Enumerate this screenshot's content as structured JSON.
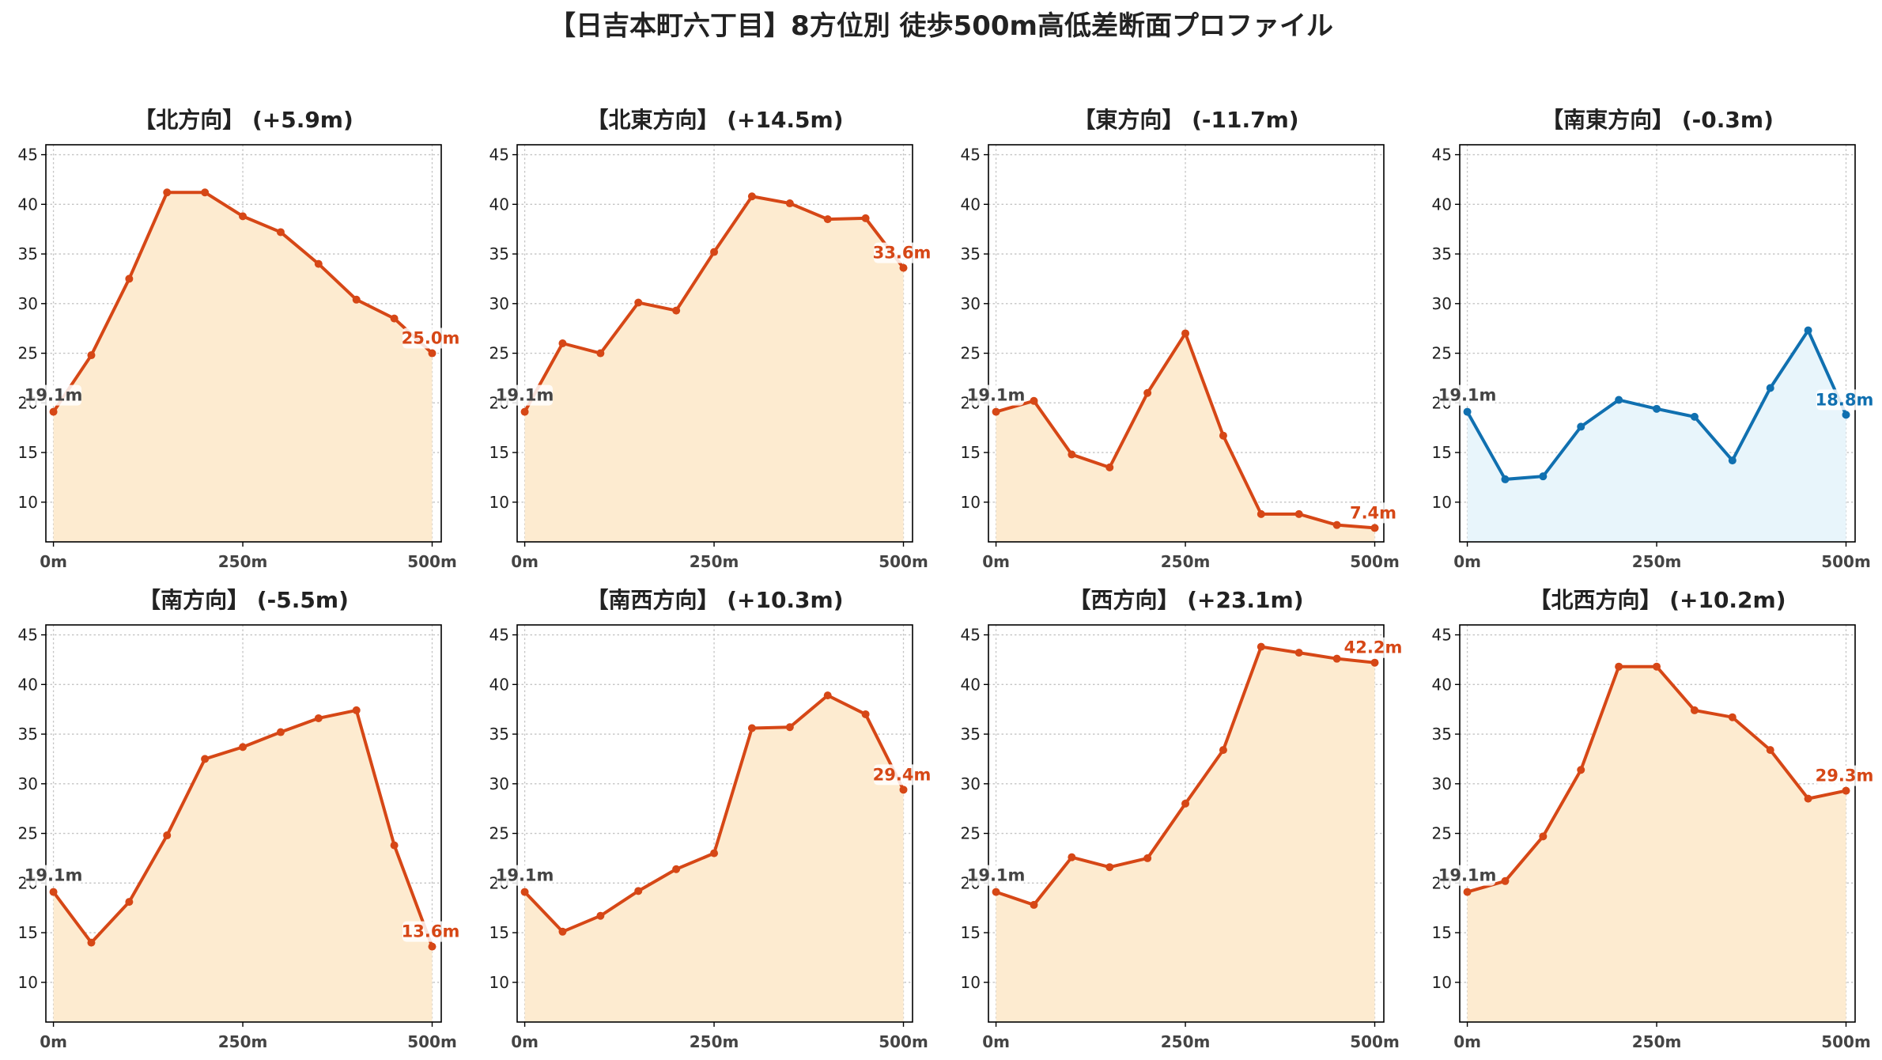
{
  "title": "【日吉本町六丁目】8方位別 徒歩500m高低差断面プロファイル",
  "colors": {
    "up": "#d64716",
    "up_fill": "#fdebd0",
    "down": "#1070b0",
    "down_fill": "#e8f5fb",
    "start_label": "#444444"
  },
  "chart_data": [
    {
      "type": "area",
      "title": "【北方向】 (+5.9m)",
      "trend": "up",
      "x": [
        0,
        50,
        100,
        150,
        200,
        250,
        300,
        350,
        400,
        450,
        500
      ],
      "values": [
        19.1,
        24.8,
        32.5,
        41.2,
        41.2,
        38.8,
        37.2,
        34.0,
        30.4,
        28.5,
        25.0
      ],
      "start_label": "19.1m",
      "end_label": "25.0m",
      "xticks": [
        "0m",
        "250m",
        "500m"
      ],
      "yticks": [
        "10",
        "15",
        "20",
        "25",
        "30",
        "35",
        "40",
        "45"
      ],
      "ylim": [
        6,
        46
      ],
      "xlim": [
        -10,
        512
      ],
      "grid": true
    },
    {
      "type": "area",
      "title": "【北東方向】 (+14.5m)",
      "trend": "up",
      "x": [
        0,
        50,
        100,
        150,
        200,
        250,
        300,
        350,
        400,
        450,
        500
      ],
      "values": [
        19.1,
        26.0,
        25.0,
        30.1,
        29.3,
        35.2,
        40.8,
        40.1,
        38.5,
        38.6,
        33.6
      ],
      "start_label": "19.1m",
      "end_label": "33.6m",
      "xticks": [
        "0m",
        "250m",
        "500m"
      ],
      "yticks": [
        "10",
        "15",
        "20",
        "25",
        "30",
        "35",
        "40",
        "45"
      ],
      "ylim": [
        6,
        46
      ],
      "xlim": [
        -10,
        512
      ],
      "grid": true
    },
    {
      "type": "area",
      "title": "【東方向】 (-11.7m)",
      "trend": "up",
      "x": [
        0,
        50,
        100,
        150,
        200,
        250,
        300,
        350,
        400,
        450,
        500
      ],
      "values": [
        19.1,
        20.2,
        14.8,
        13.5,
        21.0,
        27.0,
        16.7,
        8.8,
        8.8,
        7.7,
        7.4
      ],
      "start_label": "19.1m",
      "end_label": "7.4m",
      "xticks": [
        "0m",
        "250m",
        "500m"
      ],
      "yticks": [
        "10",
        "15",
        "20",
        "25",
        "30",
        "35",
        "40",
        "45"
      ],
      "ylim": [
        6,
        46
      ],
      "xlim": [
        -10,
        512
      ],
      "grid": true
    },
    {
      "type": "area",
      "title": "【南東方向】 (-0.3m)",
      "trend": "down",
      "x": [
        0,
        50,
        100,
        150,
        200,
        250,
        300,
        350,
        400,
        450,
        500
      ],
      "values": [
        19.1,
        12.3,
        12.6,
        17.6,
        20.3,
        19.4,
        18.6,
        14.2,
        21.5,
        27.3,
        18.8
      ],
      "start_label": "19.1m",
      "end_label": "18.8m",
      "xticks": [
        "0m",
        "250m",
        "500m"
      ],
      "yticks": [
        "10",
        "15",
        "20",
        "25",
        "30",
        "35",
        "40",
        "45"
      ],
      "ylim": [
        6,
        46
      ],
      "xlim": [
        -10,
        512
      ],
      "grid": true
    },
    {
      "type": "area",
      "title": "【南方向】 (-5.5m)",
      "trend": "up",
      "x": [
        0,
        50,
        100,
        150,
        200,
        250,
        300,
        350,
        400,
        450,
        500
      ],
      "values": [
        19.1,
        14.0,
        18.1,
        24.8,
        32.5,
        33.7,
        35.2,
        36.6,
        37.4,
        23.8,
        13.6
      ],
      "start_label": "19.1m",
      "end_label": "13.6m",
      "xticks": [
        "0m",
        "250m",
        "500m"
      ],
      "yticks": [
        "10",
        "15",
        "20",
        "25",
        "30",
        "35",
        "40",
        "45"
      ],
      "ylim": [
        6,
        46
      ],
      "xlim": [
        -10,
        512
      ],
      "grid": true
    },
    {
      "type": "area",
      "title": "【南西方向】 (+10.3m)",
      "trend": "up",
      "x": [
        0,
        50,
        100,
        150,
        200,
        250,
        300,
        350,
        400,
        450,
        500
      ],
      "values": [
        19.1,
        15.1,
        16.7,
        19.2,
        21.4,
        23.0,
        35.6,
        35.7,
        38.9,
        37.0,
        29.4
      ],
      "start_label": "19.1m",
      "end_label": "29.4m",
      "xticks": [
        "0m",
        "250m",
        "500m"
      ],
      "yticks": [
        "10",
        "15",
        "20",
        "25",
        "30",
        "35",
        "40",
        "45"
      ],
      "ylim": [
        6,
        46
      ],
      "xlim": [
        -10,
        512
      ],
      "grid": true
    },
    {
      "type": "area",
      "title": "【西方向】 (+23.1m)",
      "trend": "up",
      "x": [
        0,
        50,
        100,
        150,
        200,
        250,
        300,
        350,
        400,
        450,
        500
      ],
      "values": [
        19.1,
        17.8,
        22.6,
        21.6,
        22.5,
        28.0,
        33.4,
        43.8,
        43.2,
        42.6,
        42.2
      ],
      "start_label": "19.1m",
      "end_label": "42.2m",
      "xticks": [
        "0m",
        "250m",
        "500m"
      ],
      "yticks": [
        "10",
        "15",
        "20",
        "25",
        "30",
        "35",
        "40",
        "45"
      ],
      "ylim": [
        6,
        46
      ],
      "xlim": [
        -10,
        512
      ],
      "grid": true
    },
    {
      "type": "area",
      "title": "【北西方向】 (+10.2m)",
      "trend": "up",
      "x": [
        0,
        50,
        100,
        150,
        200,
        250,
        300,
        350,
        400,
        450,
        500
      ],
      "values": [
        19.1,
        20.2,
        24.7,
        31.4,
        41.8,
        41.8,
        37.4,
        36.7,
        33.4,
        28.5,
        29.3
      ],
      "start_label": "19.1m",
      "end_label": "29.3m",
      "xticks": [
        "0m",
        "250m",
        "500m"
      ],
      "yticks": [
        "10",
        "15",
        "20",
        "25",
        "30",
        "35",
        "40",
        "45"
      ],
      "ylim": [
        6,
        46
      ],
      "xlim": [
        -10,
        512
      ],
      "grid": true
    }
  ]
}
